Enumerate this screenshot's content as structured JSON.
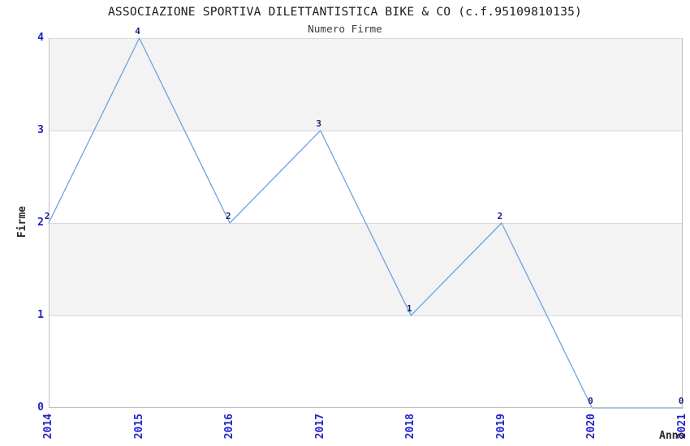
{
  "header": {
    "title": "ASSOCIAZIONE SPORTIVA DILETTANTISTICA BIKE & CO (c.f.95109810135)",
    "subtitle": "Numero Firme"
  },
  "chart_data": {
    "type": "line",
    "title": "ASSOCIAZIONE SPORTIVA DILETTANTISTICA BIKE & CO (c.f.95109810135)",
    "subtitle": "Numero Firme",
    "categories": [
      "2014",
      "2015",
      "2016",
      "2017",
      "2018",
      "2019",
      "2020",
      "2021"
    ],
    "values": [
      2,
      4,
      2,
      3,
      1,
      2,
      0,
      0
    ],
    "data_labels": [
      "2",
      "4",
      "2",
      "3",
      "1",
      "2",
      "0",
      "0"
    ],
    "xlabel": "Anno",
    "ylabel": "Firme",
    "ylim": [
      0,
      4
    ],
    "y_ticks": [
      0,
      1,
      2,
      3,
      4
    ],
    "grid": "horizontal",
    "alternating_bands": true,
    "legend": "none",
    "colors": {
      "line": "#6ca2e0",
      "tick_labels": "#2222cc",
      "data_labels": "#1f1f7a",
      "band": "#f3f3f3",
      "gridline": "#d9d9d9",
      "frame": "#bfbfbf",
      "title": "#1a1a1a",
      "subtitle": "#3d3d3d",
      "axis_titles": "#2b2b2b"
    }
  }
}
